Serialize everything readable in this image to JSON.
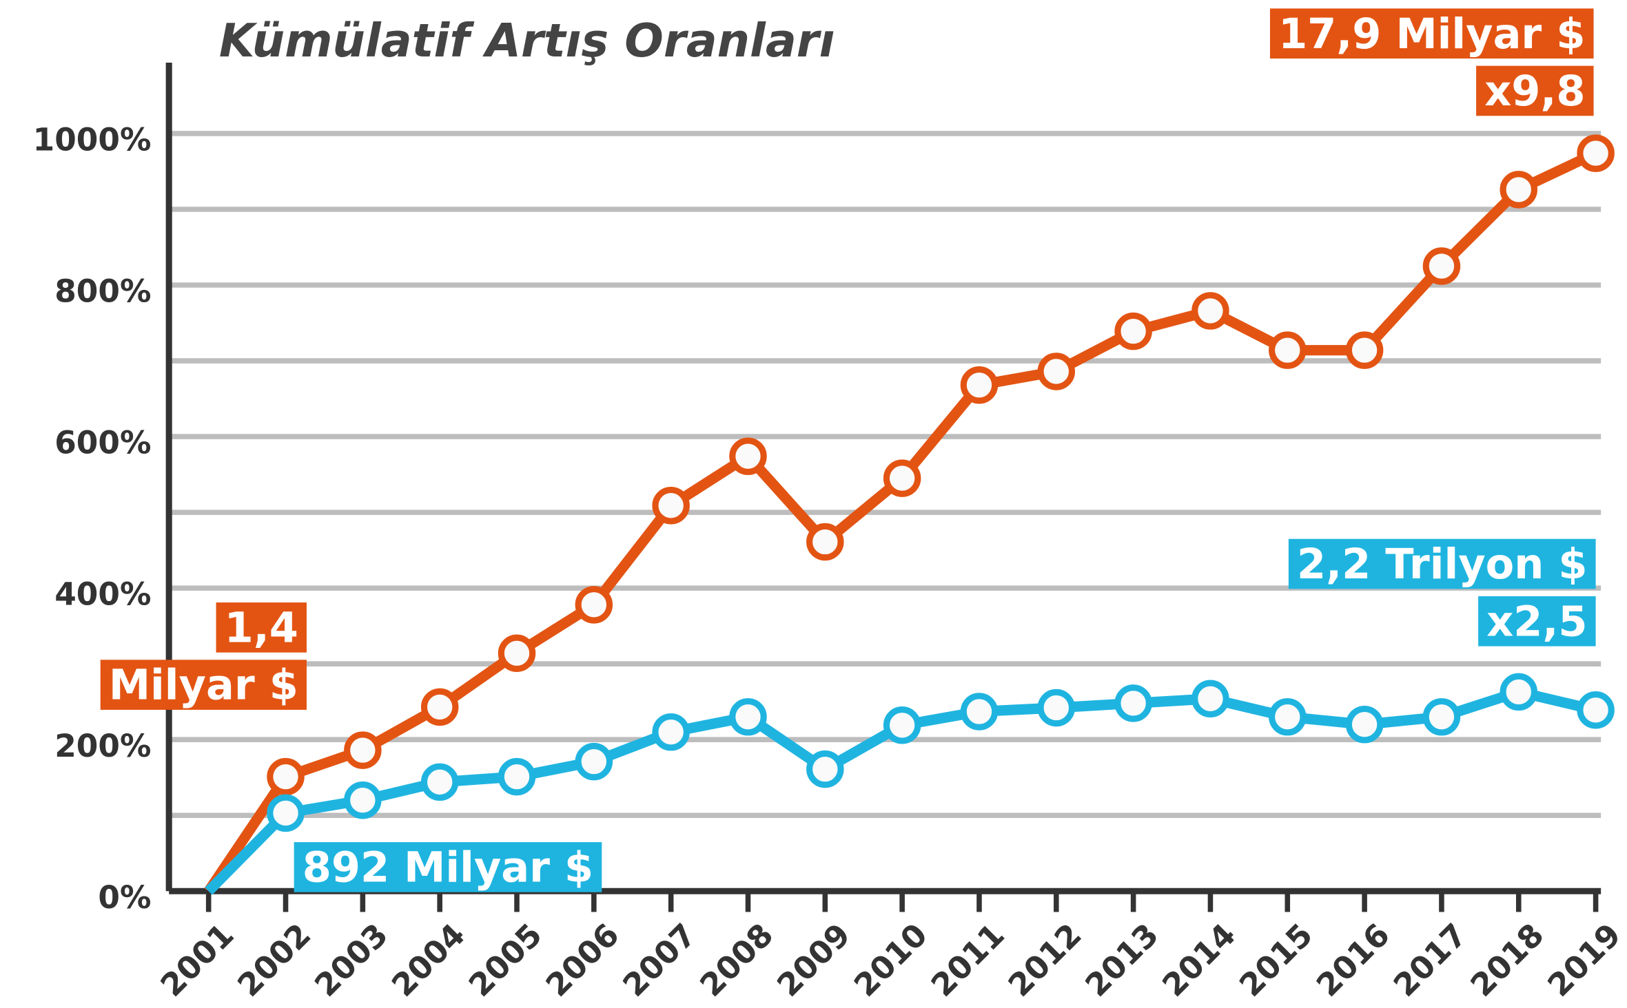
{
  "chart_data": {
    "type": "line",
    "title": "Kümülatif Artış Oranları",
    "x": [
      "2001",
      "2002",
      "2003",
      "2004",
      "2005",
      "2006",
      "2007",
      "2008",
      "2009",
      "2010",
      "2011",
      "2012",
      "2013",
      "2014",
      "2015",
      "2016",
      "2017",
      "2018",
      "2019"
    ],
    "series": [
      {
        "color": "#e35413",
        "values": [
          0,
          151,
          186,
          243,
          314,
          378,
          509,
          574,
          461,
          545,
          668,
          686,
          739,
          766,
          714,
          714,
          825,
          926,
          974
        ]
      },
      {
        "color": "#1fb4e0",
        "values": [
          0,
          103,
          120,
          144,
          151,
          171,
          210,
          230,
          161,
          219,
          237,
          242,
          248,
          254,
          230,
          220,
          230,
          263,
          239
        ]
      }
    ],
    "ylim": [
      0,
      1100
    ],
    "yticks": [
      {
        "value": 0,
        "label": "0%"
      },
      {
        "value": 200,
        "label": "200%"
      },
      {
        "value": 400,
        "label": "400%"
      },
      {
        "value": 600,
        "label": "600%"
      },
      {
        "value": 800,
        "label": "800%"
      },
      {
        "value": 1000,
        "label": "1000%"
      }
    ],
    "minor_yticks": [
      100,
      300,
      500,
      700,
      900
    ],
    "grid": true,
    "annotations": [
      {
        "lines": [
          "17,9 Milyar $",
          "x9,8"
        ],
        "color": "#e35413"
      },
      {
        "lines": [
          "1,4",
          "Milyar $"
        ],
        "color": "#e35413"
      },
      {
        "lines": [
          "892 Milyar $"
        ],
        "color": "#1fb4e0"
      },
      {
        "lines": [
          "2,2 Trilyon $",
          "x2,5"
        ],
        "color": "#1fb4e0"
      }
    ]
  }
}
